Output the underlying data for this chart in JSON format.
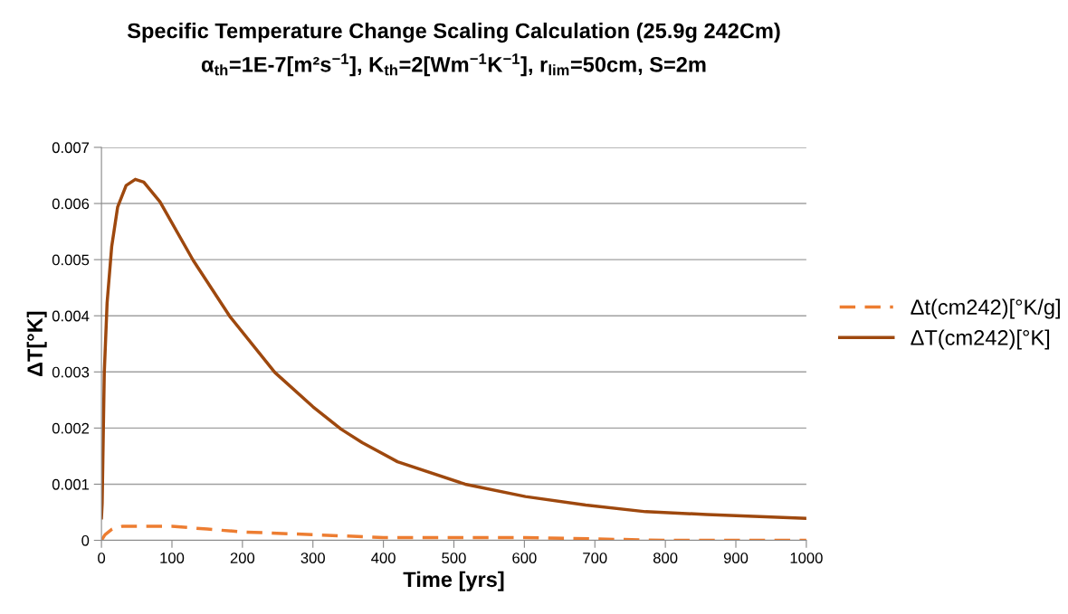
{
  "chart_data": {
    "type": "line",
    "title": "Specific Temperature Change Scaling Calculation (25.9g 242Cm)\nα$_{th}$=1E-7[m²s$^{−1}$], K$_{th}$=2[Wm$^{−1}$K$^{−1}$], r$_{lim}$=50cm, S=2m",
    "xlabel": "Time [yrs]",
    "ylabel": "ΔT[°K]",
    "xlim": [
      0,
      1000
    ],
    "xticks": [
      0,
      100,
      200,
      300,
      400,
      500,
      600,
      700,
      800,
      900,
      1000
    ],
    "ylim": [
      0,
      0.007
    ],
    "yticks": [
      0,
      0.001,
      0.002,
      0.003,
      0.004,
      0.005,
      0.006,
      0.007
    ],
    "grid": "y",
    "legend": "right",
    "marker": "none",
    "series": [
      {
        "name": "Δt(cm242)[°K/g]",
        "color": "#ed7d31",
        "line_style": "dashed",
        "x": [
          0,
          5,
          15,
          30,
          50,
          100,
          150,
          200,
          300,
          400,
          500,
          600,
          800,
          1000
        ],
        "values": [
          0,
          0.0001,
          0.0002,
          0.00025,
          0.00025,
          0.00025,
          0.0002,
          0.00015,
          0.0001,
          5e-05,
          5e-05,
          5e-05,
          0,
          0
        ]
      },
      {
        "name": "ΔT(cm242)[°K]",
        "color": "#9e480e",
        "line_style": "solid",
        "x": [
          0,
          1,
          4,
          8,
          14.5,
          23,
          35,
          48,
          60,
          83,
          130,
          182,
          246,
          300,
          340,
          370,
          420,
          516,
          601.5,
          687,
          772,
          859,
          1000
        ],
        "values": [
          0.0004,
          0.00066,
          0.00298,
          0.00423,
          0.00523,
          0.00594,
          0.00632,
          0.00643,
          0.00638,
          0.00603,
          0.00499,
          0.00399,
          0.00299,
          0.00238,
          0.00198,
          0.00174,
          0.0014,
          0.001,
          0.00078,
          0.00063,
          0.00051,
          0.00046,
          0.00039
        ]
      }
    ]
  }
}
